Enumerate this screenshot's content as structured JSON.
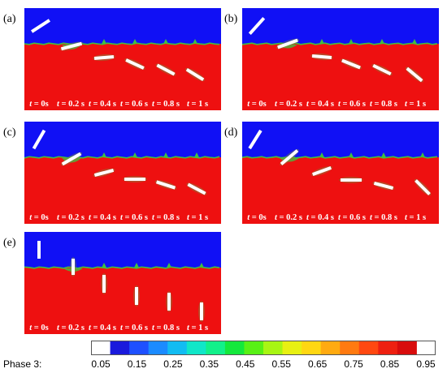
{
  "panels": [
    {
      "label": "(a)",
      "sequence": "inclined",
      "times": [
        "0s",
        "0.2 s",
        "0.4 s",
        "0.6 s",
        "0.8 s",
        "1 s"
      ]
    },
    {
      "label": "(b)",
      "sequence": "inclined-steep",
      "times": [
        "0s",
        "0.2 s",
        "0.4 s",
        "0.6 s",
        "0.8 s",
        "1 s"
      ]
    },
    {
      "label": "(c)",
      "sequence": "near-vertical",
      "times": [
        "0s",
        "0.2 s",
        "0.4 s",
        "0.6 s",
        "0.8 s",
        "1 s"
      ]
    },
    {
      "label": "(d)",
      "sequence": "near-vertical-b",
      "times": [
        "0s",
        "0.2 s",
        "0.4 s",
        "0.6 s",
        "0.8 s",
        "1 s"
      ]
    },
    {
      "label": "(e)",
      "sequence": "vertical",
      "times": [
        "0s",
        "0.2 s",
        "0.4 s",
        "0.6 s",
        "0.8 s",
        "1 s"
      ]
    }
  ],
  "time_prefix": "t",
  "colorbar": {
    "title": "Phase 3:",
    "ticks": [
      "0.05",
      "0.15",
      "0.25",
      "0.35",
      "0.45",
      "0.55",
      "0.65",
      "0.75",
      "0.85",
      "0.95"
    ],
    "colors": [
      "#1a1adc",
      "#1e50ff",
      "#1b8bff",
      "#12bcf2",
      "#10e6c8",
      "#12f08a",
      "#14e83c",
      "#58f015",
      "#a8f513",
      "#e8f012",
      "#ffd712",
      "#ffaa10",
      "#ff7a10",
      "#ff4810",
      "#ee2010",
      "#d80c0c"
    ]
  },
  "colors": {
    "air": "#1010f5",
    "water": "#ee1010",
    "interface": "#40c040",
    "object": "#ffffff"
  }
}
